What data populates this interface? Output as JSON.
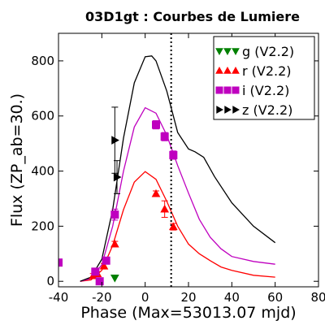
{
  "chart_data": {
    "type": "scatter",
    "title": "03D1gt : Courbes de Lumiere",
    "xlabel": "Phase (Max=53013.07 mjd)",
    "ylabel": "Flux (ZP_ab=30.)",
    "xlim": [
      -40,
      80
    ],
    "ylim": [
      -20,
      900
    ],
    "xticks": [
      -40,
      -20,
      0,
      20,
      40,
      60,
      80
    ],
    "xtick_labels": [
      "-40",
      "-20",
      "0",
      "20",
      "40",
      "60",
      "80"
    ],
    "yticks": [
      0,
      200,
      400,
      600,
      800
    ],
    "ytick_labels": [
      "0",
      "200",
      "400",
      "600",
      "800"
    ],
    "grid": false,
    "legend_position": "top-right",
    "vline": {
      "x": 12,
      "style": "dotted",
      "color": "#000000"
    },
    "series": [
      {
        "name": "g (V2.2)",
        "color": "#008000",
        "marker": "triangle-down",
        "points": [
          {
            "x": -14,
            "y": 12,
            "err": 0
          }
        ],
        "model": []
      },
      {
        "name": "r (V2.2)",
        "color": "#ff0000",
        "marker": "triangle-up",
        "points": [
          {
            "x": -24,
            "y": 20,
            "err": 8
          },
          {
            "x": -22,
            "y": 27,
            "err": 8
          },
          {
            "x": -19,
            "y": 55,
            "err": 10
          },
          {
            "x": -14,
            "y": 135,
            "err": 10
          },
          {
            "x": 5,
            "y": 318,
            "err": 10
          },
          {
            "x": 9,
            "y": 262,
            "err": 30
          },
          {
            "x": 13,
            "y": 198,
            "err": 12
          }
        ],
        "model": [
          {
            "x": -30,
            "y": 0
          },
          {
            "x": -25,
            "y": 5
          },
          {
            "x": -20,
            "y": 40
          },
          {
            "x": -15,
            "y": 130
          },
          {
            "x": -10,
            "y": 260
          },
          {
            "x": -5,
            "y": 360
          },
          {
            "x": 0,
            "y": 398
          },
          {
            "x": 5,
            "y": 370
          },
          {
            "x": 10,
            "y": 290
          },
          {
            "x": 15,
            "y": 200
          },
          {
            "x": 20,
            "y": 135
          },
          {
            "x": 25,
            "y": 100
          },
          {
            "x": 30,
            "y": 75
          },
          {
            "x": 35,
            "y": 52
          },
          {
            "x": 40,
            "y": 40
          },
          {
            "x": 50,
            "y": 22
          },
          {
            "x": 60,
            "y": 15
          }
        ]
      },
      {
        "name": "i (V2.2)",
        "color": "#bf00bf",
        "marker": "square",
        "points": [
          {
            "x": -40,
            "y": 68,
            "err": 8
          },
          {
            "x": -23,
            "y": 35,
            "err": 8
          },
          {
            "x": -21,
            "y": 0,
            "err": 8
          },
          {
            "x": -18,
            "y": 75,
            "err": 10
          },
          {
            "x": -14,
            "y": 242,
            "err": 20
          },
          {
            "x": 5,
            "y": 568,
            "err": 15
          },
          {
            "x": 9,
            "y": 525,
            "err": 15
          },
          {
            "x": 13,
            "y": 458,
            "err": 15
          }
        ],
        "model": [
          {
            "x": -30,
            "y": 0
          },
          {
            "x": -25,
            "y": 10
          },
          {
            "x": -20,
            "y": 60
          },
          {
            "x": -15,
            "y": 200
          },
          {
            "x": -10,
            "y": 400
          },
          {
            "x": -5,
            "y": 560
          },
          {
            "x": 0,
            "y": 630
          },
          {
            "x": 5,
            "y": 610
          },
          {
            "x": 10,
            "y": 530
          },
          {
            "x": 15,
            "y": 420
          },
          {
            "x": 20,
            "y": 320
          },
          {
            "x": 25,
            "y": 225
          },
          {
            "x": 30,
            "y": 160
          },
          {
            "x": 35,
            "y": 118
          },
          {
            "x": 40,
            "y": 90
          },
          {
            "x": 50,
            "y": 72
          },
          {
            "x": 60,
            "y": 62
          }
        ]
      },
      {
        "name": "z (V2.2)",
        "color": "#000000",
        "marker": "triangle-right",
        "points": [
          {
            "x": -14,
            "y": 512,
            "err": 120
          },
          {
            "x": -13,
            "y": 378,
            "err": 60
          }
        ],
        "model": [
          {
            "x": -30,
            "y": 0
          },
          {
            "x": -25,
            "y": 15
          },
          {
            "x": -20,
            "y": 80
          },
          {
            "x": -15,
            "y": 260
          },
          {
            "x": -10,
            "y": 520
          },
          {
            "x": -5,
            "y": 720
          },
          {
            "x": 0,
            "y": 815
          },
          {
            "x": 3,
            "y": 818
          },
          {
            "x": 5,
            "y": 800
          },
          {
            "x": 10,
            "y": 690
          },
          {
            "x": 15,
            "y": 540
          },
          {
            "x": 20,
            "y": 480
          },
          {
            "x": 23,
            "y": 470
          },
          {
            "x": 27,
            "y": 450
          },
          {
            "x": 32,
            "y": 380
          },
          {
            "x": 40,
            "y": 285
          },
          {
            "x": 50,
            "y": 200
          },
          {
            "x": 60,
            "y": 140
          }
        ]
      }
    ]
  }
}
